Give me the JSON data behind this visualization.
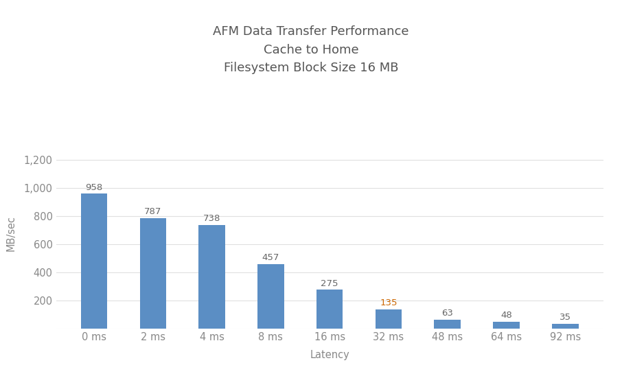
{
  "title": "AFM Data Transfer Performance\nCache to Home\nFilesystem Block Size 16 MB",
  "xlabel": "Latency",
  "ylabel": "MB/sec",
  "categories": [
    "0 ms",
    "2 ms",
    "4 ms",
    "8 ms",
    "16 ms",
    "32 ms",
    "48 ms",
    "64 ms",
    "92 ms"
  ],
  "values": [
    958,
    787,
    738,
    457,
    275,
    135,
    63,
    48,
    35
  ],
  "bar_color": "#5b8ec4",
  "label_color_default": "#666666",
  "label_color_special": "#cc6600",
  "special_label_index": 5,
  "ylim": [
    0,
    1350
  ],
  "yticks": [
    0,
    200,
    400,
    600,
    800,
    1000,
    1200
  ],
  "ytick_labels": [
    "",
    "200",
    "400",
    "600",
    "800",
    "1,000",
    "1,200"
  ],
  "background_color": "#ffffff",
  "grid_color": "#e0e0e0",
  "title_color": "#555555",
  "axis_label_color": "#888888",
  "tick_label_color": "#888888",
  "title_fontsize": 13,
  "label_fontsize": 10.5,
  "bar_label_fontsize": 9.5,
  "axis_fontsize": 10.5,
  "bar_width": 0.45
}
